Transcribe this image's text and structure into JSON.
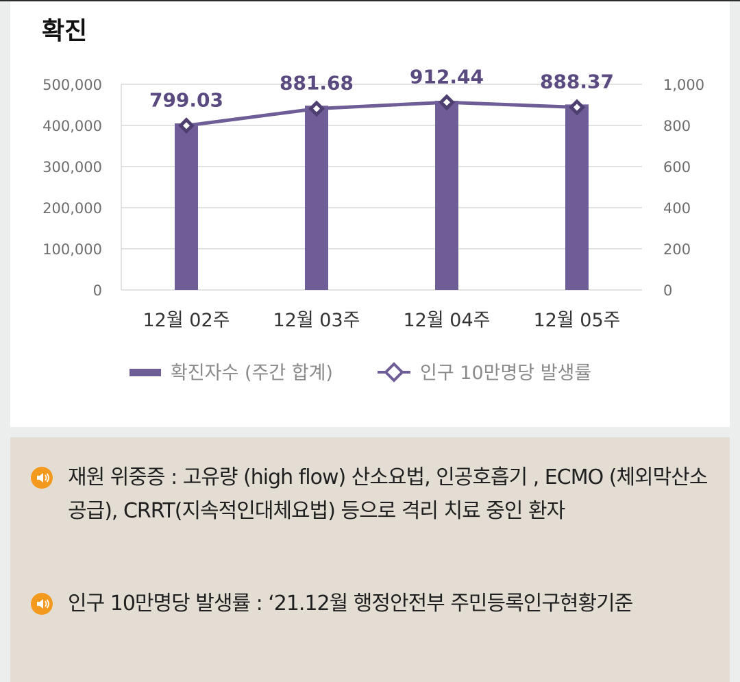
{
  "card": {
    "title": "확진"
  },
  "chart_data": {
    "type": "bar+line",
    "categories": [
      "12월 02주",
      "12월 03주",
      "12월 04주",
      "12월 05주"
    ],
    "series": [
      {
        "name": "확진자수 (주간 합계)",
        "type": "bar",
        "axis": "left",
        "values": [
          405000,
          448000,
          460000,
          451000
        ],
        "color": "#6e5d96"
      },
      {
        "name": "인구 10만명당 발생률",
        "type": "line",
        "axis": "right",
        "values": [
          799.03,
          881.68,
          912.44,
          888.37
        ],
        "labels": [
          "799.03",
          "881.68",
          "912.44",
          "888.37"
        ],
        "color": "#6e5d96"
      }
    ],
    "left_axis": {
      "ticks": [
        "0",
        "100,000",
        "200,000",
        "300,000",
        "400,000",
        "500,000"
      ],
      "range": [
        0,
        500000
      ]
    },
    "right_axis": {
      "ticks": [
        "0",
        "200",
        "400",
        "600",
        "800",
        "1,000"
      ],
      "range": [
        0,
        1000
      ]
    },
    "grid": "horizontal",
    "legend_position": "bottom"
  },
  "notes": [
    {
      "icon": "speaker-icon",
      "text": "재원 위중증 : 고유량 (high flow) 산소요법, 인공호흡기 , ECMO (체외막산소공급), CRRT(지속적인대체요법) 등으로 격리 치료 중인 환자"
    },
    {
      "icon": "speaker-icon",
      "text": "인구 10만명당 발생률 : ‘21.12월 행정안전부 주민등록인구현황기준"
    }
  ],
  "colors": {
    "accent": "#6e5d96",
    "icon": "#f39a1e",
    "notes_bg": "#e3ddd3"
  }
}
